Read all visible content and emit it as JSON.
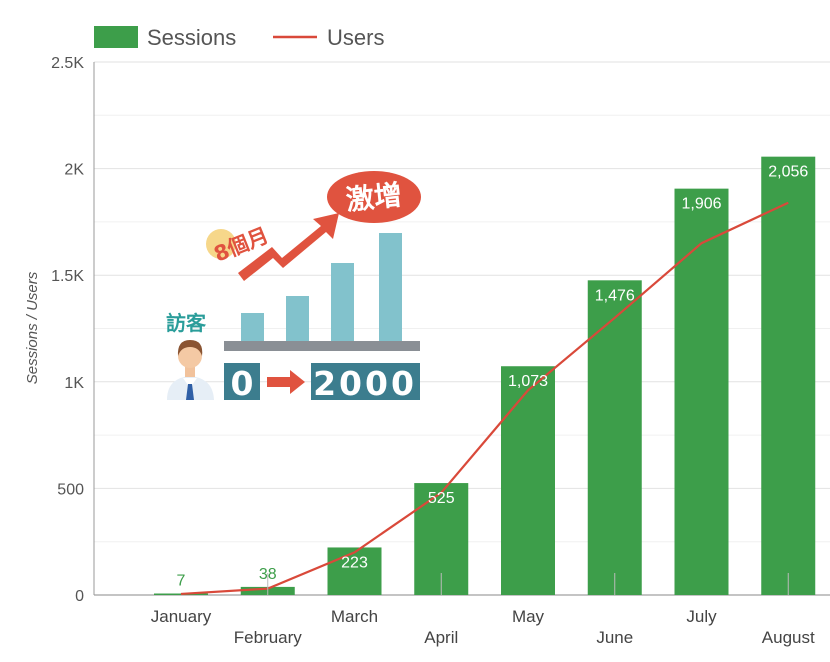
{
  "chart_data": {
    "type": "bar",
    "categories": [
      "January",
      "February",
      "March",
      "April",
      "May",
      "June",
      "July",
      "August"
    ],
    "series": [
      {
        "name": "Sessions",
        "type": "bar",
        "color": "#3d9e4a",
        "values": [
          7,
          38,
          223,
          525,
          1073,
          1476,
          1906,
          2056
        ]
      },
      {
        "name": "Users",
        "type": "line",
        "color": "#d9493a",
        "values": [
          5,
          30,
          200,
          480,
          960,
          1300,
          1650,
          1840
        ]
      }
    ],
    "data_labels": [
      "7",
      "38",
      "223",
      "525",
      "1,073",
      "1,476",
      "1,906",
      "2,056"
    ],
    "ylabel": "Sessions / Users",
    "ylim": [
      0,
      2500
    ],
    "yticks": [
      0,
      500,
      1000,
      1500,
      2000,
      2500
    ],
    "ytick_labels": [
      "0",
      "500",
      "1K",
      "1.5K",
      "2K",
      "2.5K"
    ],
    "grid": true,
    "legend_position": "top-left"
  },
  "overlay": {
    "months_text": "8個月",
    "burst_text": "激增",
    "visitors_text": "訪客",
    "from_value": "0",
    "to_value": "2000",
    "colors": {
      "accent": "#e0533f",
      "teal": "#3c7d8e",
      "bars": "#82c2cc",
      "badge": "#f6d78a"
    }
  }
}
